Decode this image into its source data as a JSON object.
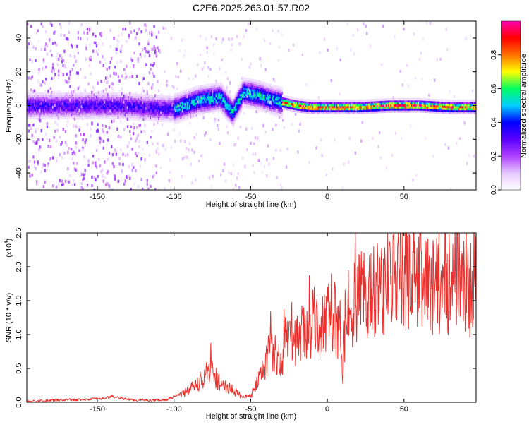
{
  "title": "C2E6.2025.263.01.57.R02",
  "chart_data": [
    {
      "type": "heatmap",
      "xlabel": "Height of straight line (km)",
      "ylabel": "Frequency (Hz)",
      "xlim": [
        -196,
        97
      ],
      "ylim": [
        -50,
        50
      ],
      "x_ticks": [
        -150,
        -100,
        -50,
        0,
        50
      ],
      "x_tick_labels": [
        "-150",
        "-100",
        "-50",
        "0",
        "50"
      ],
      "y_ticks": [
        -40,
        -20,
        0,
        20,
        40
      ],
      "y_tick_labels": [
        "-40",
        "-20",
        "0",
        "20",
        "40"
      ],
      "colorbar": {
        "label": "Normalized spectral amplitude",
        "range": [
          0,
          1
        ],
        "ticks": [
          0.0,
          0.2,
          0.4,
          0.6,
          0.8
        ],
        "tick_labels": [
          "0.0",
          "0.2",
          "0.4",
          "0.6",
          "0.8"
        ],
        "colors": [
          "#ffffff",
          "#e6c8ff",
          "#b040ff",
          "#5a00ff",
          "#0000ff",
          "#00d0ff",
          "#00ff60",
          "#ffff00",
          "#ff7000",
          "#ff0000",
          "#ff00b0"
        ]
      },
      "ridge": {
        "x": [
          -196,
          -175,
          -155,
          -135,
          -120,
          -100,
          -85,
          -70,
          -62,
          -55,
          -45,
          -38,
          -30,
          -20,
          -10,
          0,
          20,
          40,
          60,
          80,
          97
        ],
        "y": [
          0,
          0,
          0,
          0,
          -1,
          -2,
          3,
          5,
          -4,
          8,
          6,
          4,
          2,
          0,
          -1,
          -1,
          -1,
          0,
          0,
          -1,
          -1
        ]
      }
    },
    {
      "type": "line",
      "xlabel": "Height of straight line (km)",
      "ylabel": "SNR (10 * v/v)",
      "y_scale_label": "(x10",
      "y_scale_exponent": "4",
      "xlim": [
        -196,
        97
      ],
      "ylim": [
        0,
        2.5
      ],
      "x_ticks": [
        -150,
        -100,
        -50,
        0,
        50
      ],
      "x_tick_labels": [
        "-150",
        "-100",
        "-50",
        "0",
        "50"
      ],
      "y_ticks": [
        0.0,
        0.5,
        1.0,
        1.5,
        2.0,
        2.5
      ],
      "y_tick_labels": [
        "0.0",
        "0.5",
        "1.0",
        "1.5",
        "2.0",
        "2.5"
      ],
      "color": "#e8302c",
      "series": [
        {
          "name": "SNR",
          "x": [
            -196,
            -180,
            -160,
            -145,
            -140,
            -130,
            -115,
            -105,
            -95,
            -85,
            -80,
            -76,
            -70,
            -60,
            -55,
            -50,
            -45,
            -40,
            -37,
            -35,
            -32,
            -25,
            -15,
            -8,
            -5,
            0,
            5,
            8,
            10,
            12,
            20,
            30,
            40,
            50,
            60,
            70,
            80,
            85,
            90,
            92,
            97
          ],
          "values": [
            0.01,
            0.03,
            0.04,
            0.06,
            0.09,
            0.04,
            0.03,
            0.04,
            0.12,
            0.25,
            0.38,
            0.5,
            0.28,
            0.15,
            0.08,
            0.1,
            0.3,
            0.55,
            0.9,
            0.8,
            0.6,
            0.9,
            1.0,
            1.2,
            1.1,
            1.25,
            1.2,
            0.9,
            0.35,
            1.4,
            1.5,
            1.7,
            1.8,
            1.85,
            1.85,
            1.75,
            1.8,
            1.85,
            1.75,
            1.6,
            1.8
          ]
        }
      ]
    }
  ]
}
